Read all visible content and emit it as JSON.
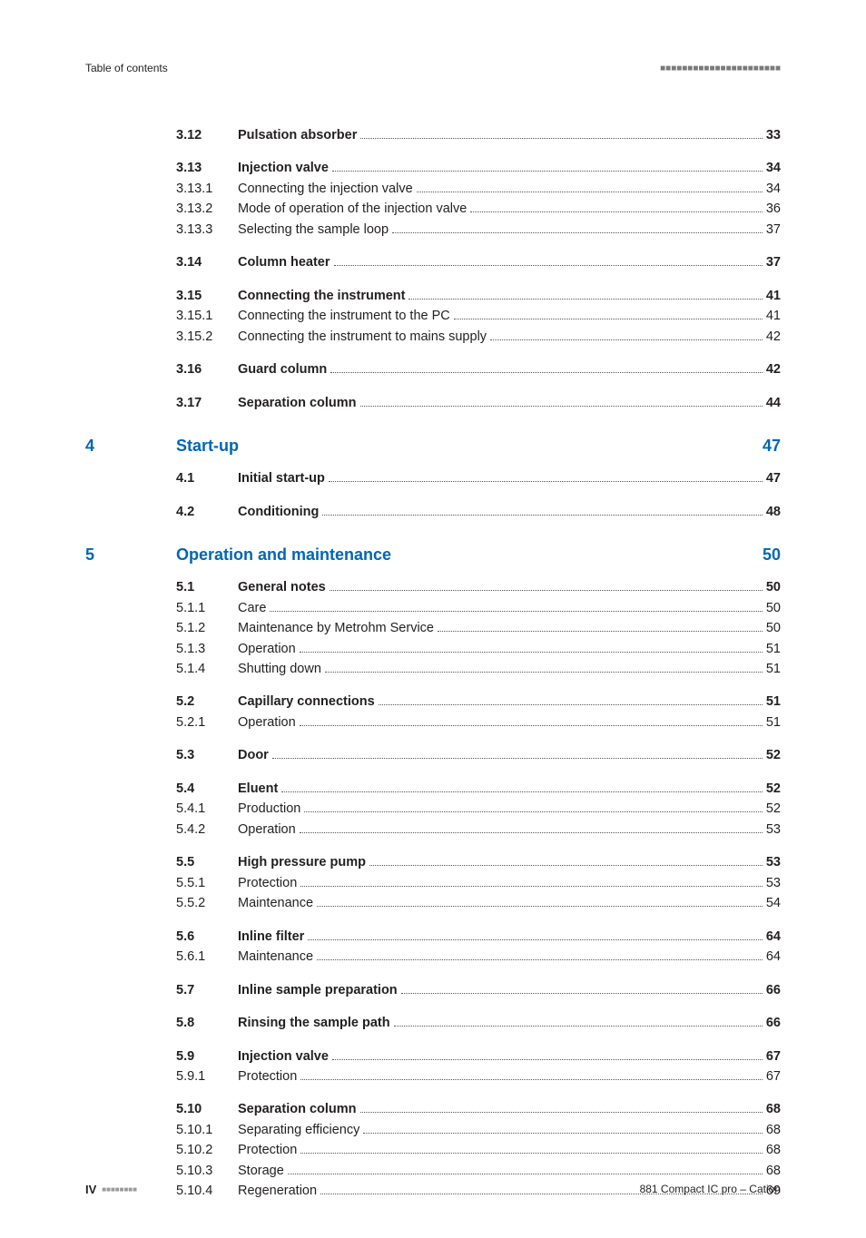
{
  "header": {
    "left": "Table of contents",
    "right_bars": "■■■■■■■■■■■■■■■■■■■■■■"
  },
  "sections": [
    {
      "type": "row",
      "bold": true,
      "num": "3.12",
      "label": "Pulsation absorber",
      "page": "33"
    },
    {
      "type": "spacer",
      "size": "md"
    },
    {
      "type": "row",
      "bold": true,
      "num": "3.13",
      "label": "Injection valve",
      "page": "34"
    },
    {
      "type": "row",
      "bold": false,
      "num": "3.13.1",
      "label": "Connecting the injection valve",
      "page": "34"
    },
    {
      "type": "row",
      "bold": false,
      "num": "3.13.2",
      "label": "Mode of operation of the injection valve",
      "page": "36"
    },
    {
      "type": "row",
      "bold": false,
      "num": "3.13.3",
      "label": "Selecting the sample loop",
      "page": "37"
    },
    {
      "type": "spacer",
      "size": "md"
    },
    {
      "type": "row",
      "bold": true,
      "num": "3.14",
      "label": "Column heater",
      "page": "37"
    },
    {
      "type": "spacer",
      "size": "md"
    },
    {
      "type": "row",
      "bold": true,
      "num": "3.15",
      "label": "Connecting the instrument",
      "page": "41"
    },
    {
      "type": "row",
      "bold": false,
      "num": "3.15.1",
      "label": "Connecting the instrument to the PC",
      "page": "41"
    },
    {
      "type": "row",
      "bold": false,
      "num": "3.15.2",
      "label": "Connecting the instrument to mains supply",
      "page": "42"
    },
    {
      "type": "spacer",
      "size": "md"
    },
    {
      "type": "row",
      "bold": true,
      "num": "3.16",
      "label": "Guard column",
      "page": "42"
    },
    {
      "type": "spacer",
      "size": "md"
    },
    {
      "type": "row",
      "bold": true,
      "num": "3.17",
      "label": "Separation column",
      "page": "44"
    },
    {
      "type": "spacer",
      "size": "lg"
    },
    {
      "type": "chapter",
      "num": "4",
      "title": "Start-up",
      "page": "47"
    },
    {
      "type": "spacer",
      "size": "md"
    },
    {
      "type": "row",
      "bold": true,
      "num": "4.1",
      "label": "Initial start-up",
      "page": "47"
    },
    {
      "type": "spacer",
      "size": "md"
    },
    {
      "type": "row",
      "bold": true,
      "num": "4.2",
      "label": "Conditioning",
      "page": "48"
    },
    {
      "type": "spacer",
      "size": "lg"
    },
    {
      "type": "chapter",
      "num": "5",
      "title": "Operation and maintenance",
      "page": "50"
    },
    {
      "type": "spacer",
      "size": "md"
    },
    {
      "type": "row",
      "bold": true,
      "num": "5.1",
      "label": "General notes",
      "page": "50"
    },
    {
      "type": "row",
      "bold": false,
      "num": "5.1.1",
      "label": "Care",
      "page": "50"
    },
    {
      "type": "row",
      "bold": false,
      "num": "5.1.2",
      "label": "Maintenance by Metrohm Service",
      "page": "50"
    },
    {
      "type": "row",
      "bold": false,
      "num": "5.1.3",
      "label": "Operation",
      "page": "51"
    },
    {
      "type": "row",
      "bold": false,
      "num": "5.1.4",
      "label": "Shutting down",
      "page": "51"
    },
    {
      "type": "spacer",
      "size": "md"
    },
    {
      "type": "row",
      "bold": true,
      "num": "5.2",
      "label": "Capillary connections",
      "page": "51"
    },
    {
      "type": "row",
      "bold": false,
      "num": "5.2.1",
      "label": "Operation",
      "page": "51"
    },
    {
      "type": "spacer",
      "size": "md"
    },
    {
      "type": "row",
      "bold": true,
      "num": "5.3",
      "label": "Door",
      "page": "52"
    },
    {
      "type": "spacer",
      "size": "md"
    },
    {
      "type": "row",
      "bold": true,
      "num": "5.4",
      "label": "Eluent",
      "page": "52"
    },
    {
      "type": "row",
      "bold": false,
      "num": "5.4.1",
      "label": "Production",
      "page": "52"
    },
    {
      "type": "row",
      "bold": false,
      "num": "5.4.2",
      "label": "Operation",
      "page": "53"
    },
    {
      "type": "spacer",
      "size": "md"
    },
    {
      "type": "row",
      "bold": true,
      "num": "5.5",
      "label": "High pressure pump",
      "page": "53"
    },
    {
      "type": "row",
      "bold": false,
      "num": "5.5.1",
      "label": "Protection",
      "page": "53"
    },
    {
      "type": "row",
      "bold": false,
      "num": "5.5.2",
      "label": "Maintenance",
      "page": "54"
    },
    {
      "type": "spacer",
      "size": "md"
    },
    {
      "type": "row",
      "bold": true,
      "num": "5.6",
      "label": "Inline filter",
      "page": "64"
    },
    {
      "type": "row",
      "bold": false,
      "num": "5.6.1",
      "label": "Maintenance",
      "page": "64"
    },
    {
      "type": "spacer",
      "size": "md"
    },
    {
      "type": "row",
      "bold": true,
      "num": "5.7",
      "label": "Inline sample preparation",
      "page": "66"
    },
    {
      "type": "spacer",
      "size": "md"
    },
    {
      "type": "row",
      "bold": true,
      "num": "5.8",
      "label": "Rinsing the sample path",
      "page": "66"
    },
    {
      "type": "spacer",
      "size": "md"
    },
    {
      "type": "row",
      "bold": true,
      "num": "5.9",
      "label": "Injection valve",
      "page": "67"
    },
    {
      "type": "row",
      "bold": false,
      "num": "5.9.1",
      "label": "Protection",
      "page": "67"
    },
    {
      "type": "spacer",
      "size": "md"
    },
    {
      "type": "row",
      "bold": true,
      "num": "5.10",
      "label": "Separation column",
      "page": "68"
    },
    {
      "type": "row",
      "bold": false,
      "num": "5.10.1",
      "label": "Separating efficiency",
      "page": "68"
    },
    {
      "type": "row",
      "bold": false,
      "num": "5.10.2",
      "label": "Protection",
      "page": "68"
    },
    {
      "type": "row",
      "bold": false,
      "num": "5.10.3",
      "label": "Storage",
      "page": "68"
    },
    {
      "type": "row",
      "bold": false,
      "num": "5.10.4",
      "label": "Regeneration",
      "page": "69"
    }
  ],
  "footer": {
    "left_roman": "IV",
    "left_bars": "■■■■■■■■",
    "right": "881 Compact IC pro – Cation"
  },
  "colors": {
    "heading_blue": "#0066b3",
    "text": "#231f20",
    "bars_gray": "#7a7a7a"
  }
}
